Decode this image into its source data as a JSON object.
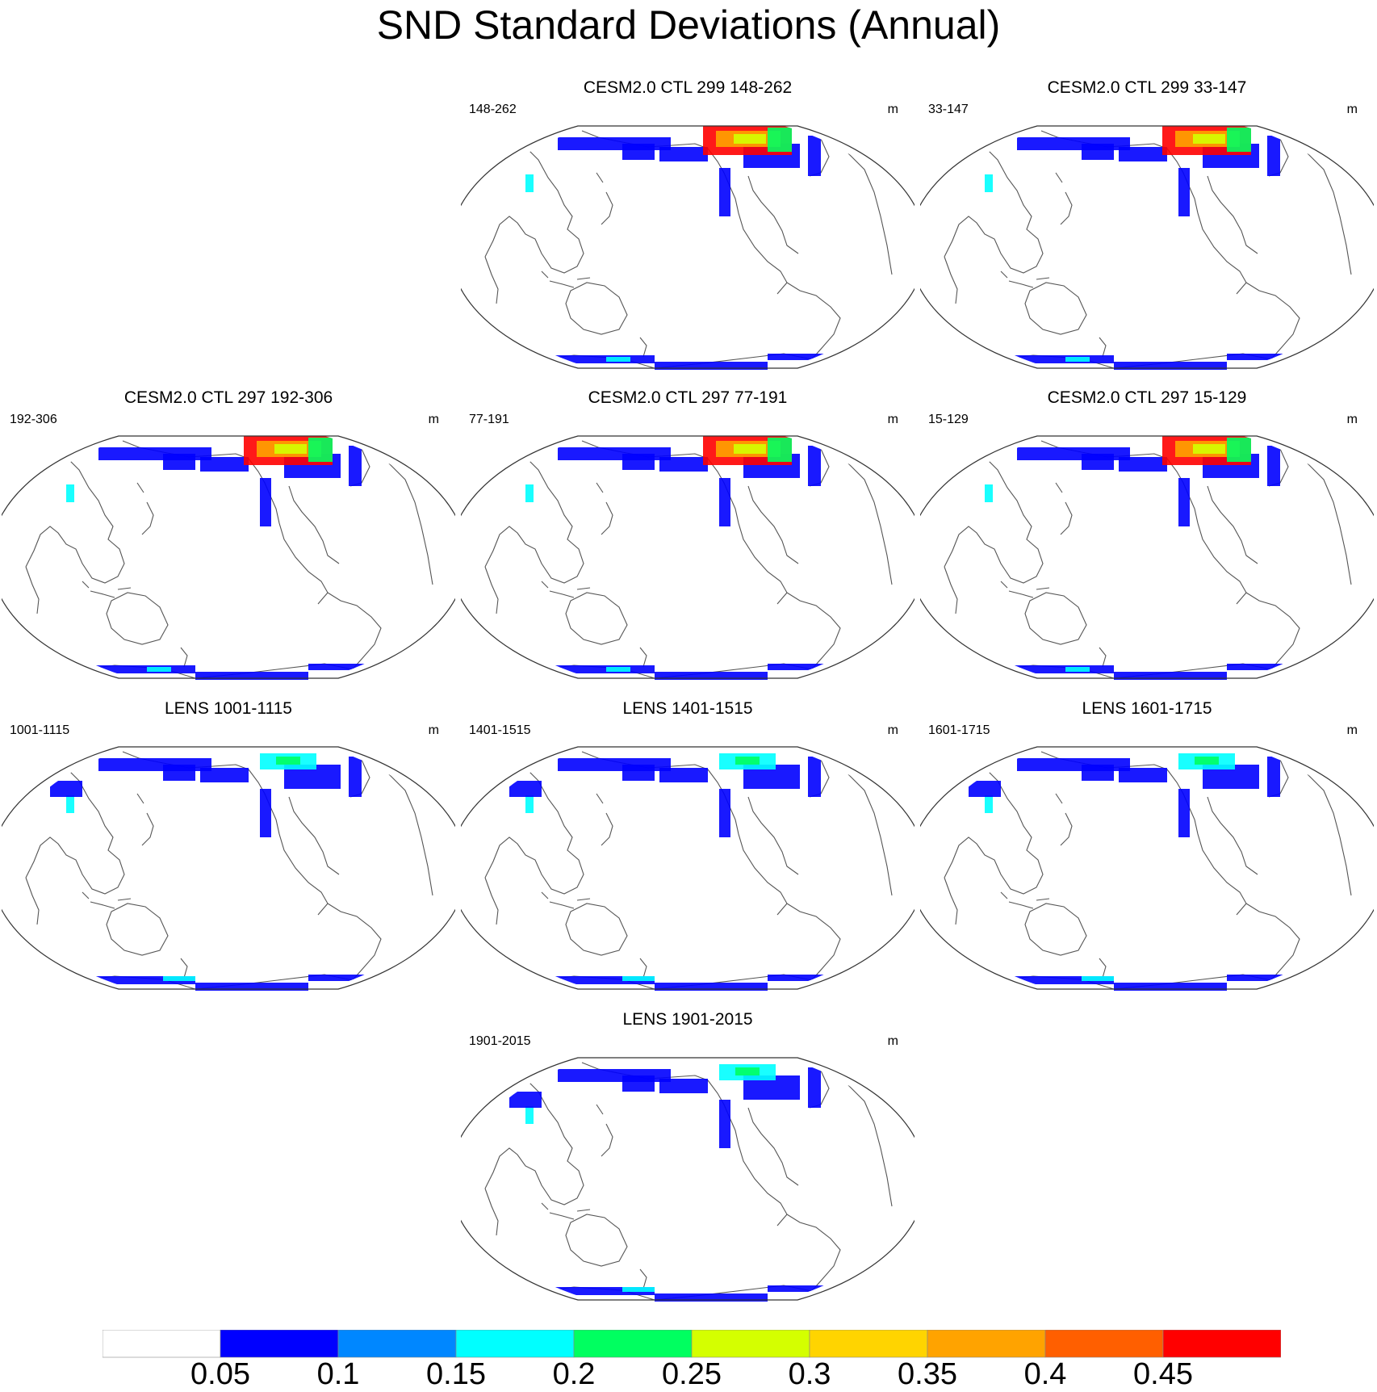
{
  "title": "SND Standard Deviations (Annual)",
  "units": "m",
  "panels": [
    {
      "title": "CESM2.0 CTL 299 148-262",
      "left_label": "148-262",
      "right_label": "m",
      "group": "CTL"
    },
    {
      "title": "CESM2.0 CTL 299 33-147",
      "left_label": "33-147",
      "right_label": "m",
      "group": "CTL"
    },
    {
      "title": "CESM2.0 CTL 297 192-306",
      "left_label": "192-306",
      "right_label": "m",
      "group": "CTL"
    },
    {
      "title": "CESM2.0 CTL 297 77-191",
      "left_label": "77-191",
      "right_label": "m",
      "group": "CTL"
    },
    {
      "title": "CESM2.0 CTL 297 15-129",
      "left_label": "15-129",
      "right_label": "m",
      "group": "CTL"
    },
    {
      "title": "LENS 1001-1115",
      "left_label": "1001-1115",
      "right_label": "m",
      "group": "LENS"
    },
    {
      "title": "LENS 1401-1515",
      "left_label": "1401-1515",
      "right_label": "m",
      "group": "LENS"
    },
    {
      "title": "LENS 1601-1715",
      "left_label": "1601-1715",
      "right_label": "m",
      "group": "LENS"
    },
    {
      "title": "LENS 1901-2015",
      "left_label": "1901-2015",
      "right_label": "m",
      "group": "LENS"
    }
  ],
  "colorbar": {
    "levels": [
      "0.05",
      "0.1",
      "0.15",
      "0.2",
      "0.25",
      "0.3",
      "0.35",
      "0.4",
      "0.45"
    ],
    "colors": [
      "#ffffff",
      "#0000ff",
      "#0087ff",
      "#00ffff",
      "#00ff60",
      "#d4ff00",
      "#ffd400",
      "#ffa300",
      "#ff5f00",
      "#ff0000"
    ]
  }
}
